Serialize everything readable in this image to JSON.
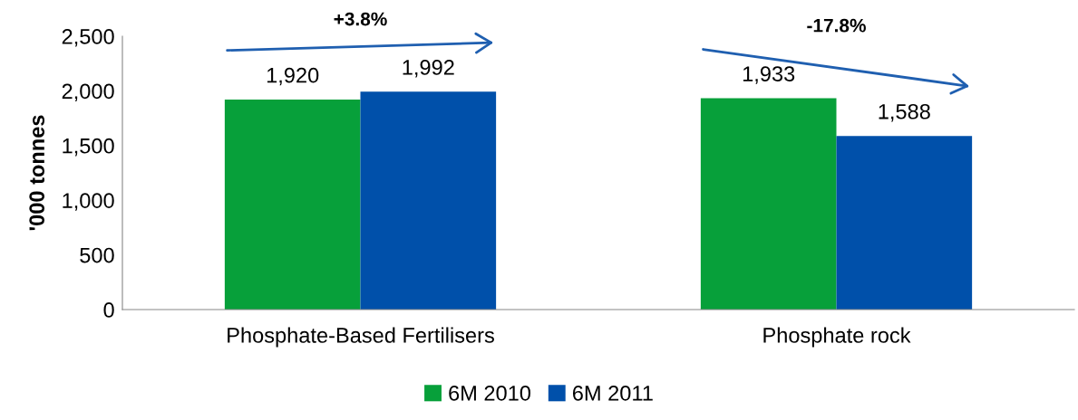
{
  "chart_data": {
    "type": "bar",
    "ylabel": "'000 tonnes",
    "categories": [
      "Phosphate-Based Fertilisers",
      "Phosphate rock"
    ],
    "series": [
      {
        "name": "6M 2010",
        "color": "#07a03a",
        "values": [
          1920,
          1933
        ],
        "value_labels": [
          "1,920",
          "1,933"
        ]
      },
      {
        "name": "6M 2011",
        "color": "#0050aa",
        "values": [
          1992,
          1588
        ],
        "value_labels": [
          "1,992",
          "1,588"
        ]
      }
    ],
    "ylim": [
      0,
      2500
    ],
    "yticks": [
      0,
      500,
      {
        "value": 1000,
        "label": "1,000"
      },
      {
        "value": 1500,
        "label": "1,500"
      },
      {
        "value": 2000,
        "label": "2,000"
      },
      {
        "value": 2500,
        "label": "2,500"
      }
    ],
    "grid": false,
    "legend": "bottom",
    "annotations": [
      "+3.8%",
      "-17.8%"
    ]
  }
}
